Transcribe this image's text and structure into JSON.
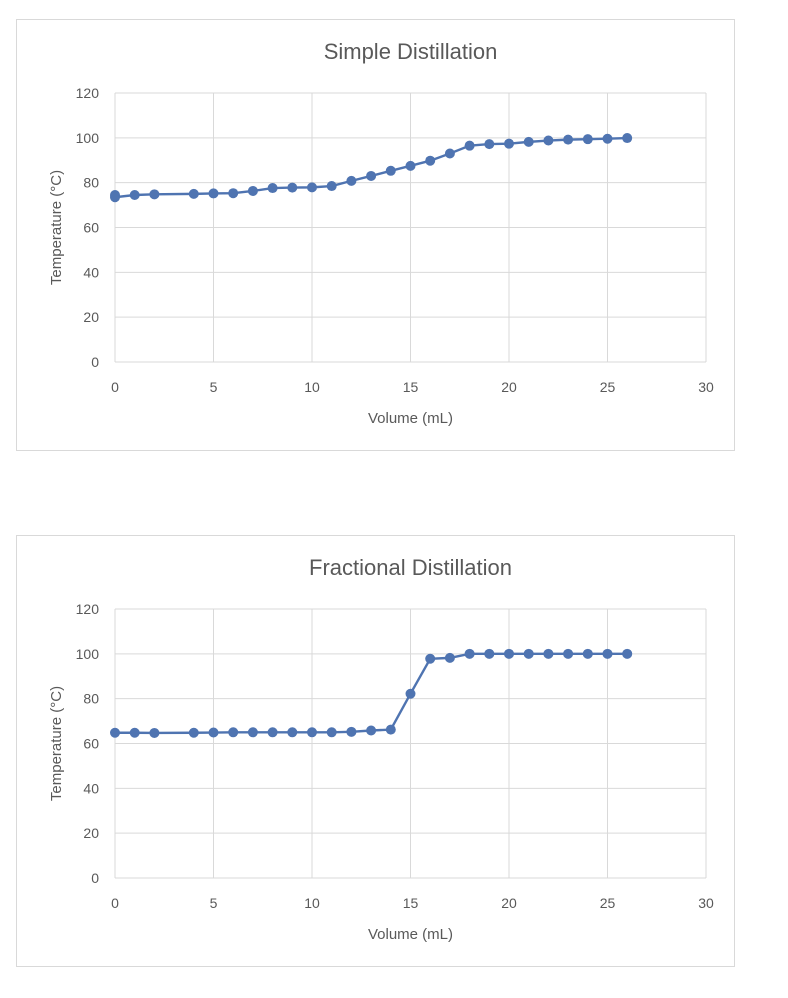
{
  "chart_data": [
    {
      "type": "line",
      "title": "Simple Distillation",
      "xlabel": "Volume (mL)",
      "ylabel": "Temperature (°C)",
      "xlim": [
        0,
        30
      ],
      "ylim": [
        0,
        120
      ],
      "xticks": [
        0,
        5,
        10,
        15,
        20,
        25,
        30
      ],
      "yticks": [
        0,
        20,
        40,
        60,
        80,
        100,
        120
      ],
      "grid": true,
      "legend": "none",
      "color": "#4f74b1",
      "series": [
        {
          "x": [
            0,
            0,
            1,
            2,
            4,
            5,
            6,
            7,
            8,
            9,
            10,
            11,
            12,
            13,
            14,
            15,
            16,
            17,
            18,
            19,
            20,
            21,
            22,
            23,
            24,
            25,
            26
          ],
          "y": [
            74.5,
            73.5,
            74.5,
            74.8,
            75,
            75.2,
            75.3,
            76.3,
            77.6,
            77.8,
            77.9,
            78.5,
            80.8,
            83,
            85.3,
            87.5,
            89.8,
            93,
            96.5,
            97.2,
            97.4,
            98.2,
            98.8,
            99.2,
            99.4,
            99.6,
            99.9
          ]
        }
      ]
    },
    {
      "type": "line",
      "title": "Fractional Distillation",
      "xlabel": "Volume (mL)",
      "ylabel": "Temperature (°C)",
      "xlim": [
        0,
        30
      ],
      "ylim": [
        0,
        120
      ],
      "xticks": [
        0,
        5,
        10,
        15,
        20,
        25,
        30
      ],
      "yticks": [
        0,
        20,
        40,
        60,
        80,
        100,
        120
      ],
      "grid": true,
      "legend": "none",
      "color": "#4f74b1",
      "series": [
        {
          "x": [
            0,
            1,
            2,
            4,
            5,
            6,
            7,
            8,
            9,
            10,
            11,
            12,
            13,
            14,
            15,
            16,
            17,
            18,
            19,
            20,
            21,
            22,
            23,
            24,
            25,
            26
          ],
          "y": [
            64.8,
            64.8,
            64.7,
            64.8,
            64.9,
            65,
            65,
            65,
            65,
            65,
            65,
            65.2,
            65.8,
            66.2,
            82.2,
            97.8,
            98.2,
            100,
            100,
            100,
            100,
            100,
            100,
            100,
            100,
            100
          ]
        }
      ]
    }
  ]
}
